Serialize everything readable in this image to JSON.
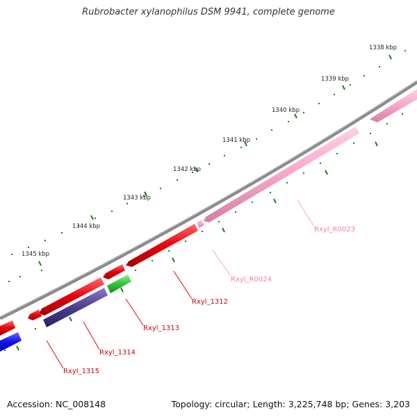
{
  "title": "Rubrobacter xylanophilus DSM 9941, complete genome",
  "footer": {
    "accession": "Accession: NC_008148",
    "summary": "Topology: circular; Length: 3,225,748 bp; Genes: 3,203"
  },
  "ticks": [
    "1338 kbp",
    "1339 kbp",
    "1340 kbp",
    "1341 kbp",
    "1342 kbp",
    "1343 kbp",
    "1344 kbp",
    "1345 kbp"
  ],
  "genes": [
    {
      "label": "Rxyl_R0023",
      "color": "#f7a6c9",
      "strand": "reverse"
    },
    {
      "label": "Rxyl_R0024",
      "color": "#f7a6c9",
      "strand": "reverse"
    },
    {
      "label": "Rxyl_1312",
      "color": "#e8000b",
      "strand": "reverse"
    },
    {
      "label": "Rxyl_1313",
      "color": "#36c23a",
      "strand": "forward"
    },
    {
      "label": "Rxyl_1314",
      "color": "#4b3c8c",
      "strand": "forward"
    },
    {
      "label": "Rxyl_1315",
      "color": "#e8000b",
      "strand": "reverse"
    }
  ],
  "colors": {
    "backbone": "#8a8a8a",
    "tick": "#1f7a1f",
    "blue_gene": "#1010ee"
  }
}
